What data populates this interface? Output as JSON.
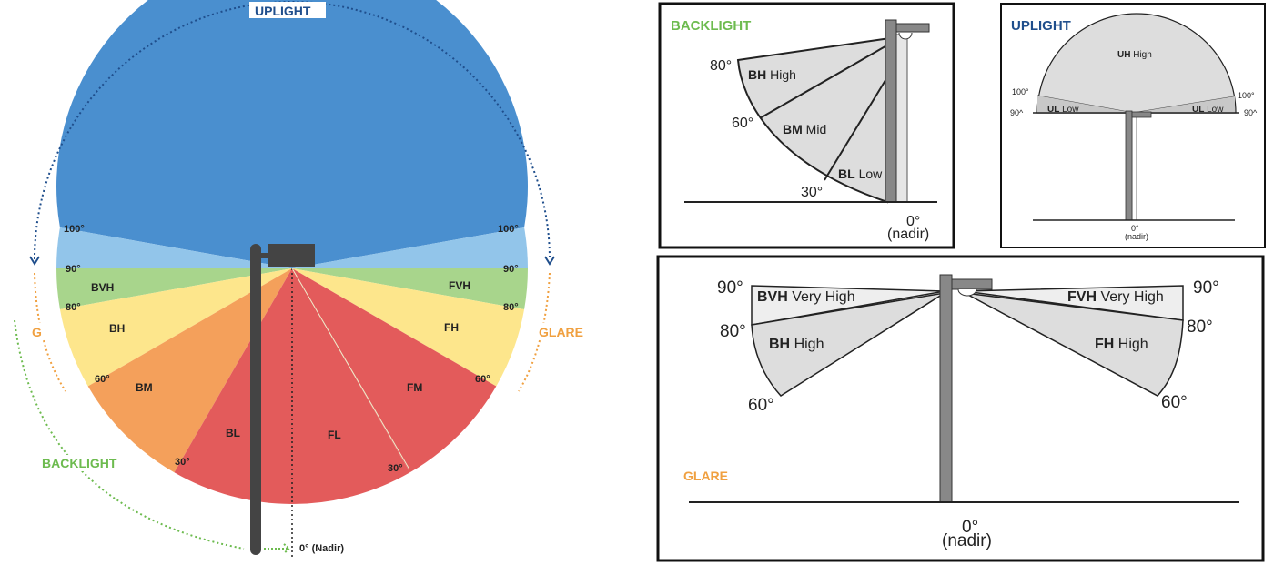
{
  "left_diagram": {
    "titles": {
      "uplight": "UPLIGHT",
      "glare_left": "G",
      "glare_right": "GLARE",
      "backlight": "BACKLIGHT"
    },
    "nadir_label": "0° (Nadir)",
    "sectors": [
      {
        "label": "",
        "from": -100,
        "to": 100,
        "color": "#4a8fcf",
        "upper": true
      },
      {
        "label": "",
        "from": 90,
        "to": 100,
        "color": "#92c5ea"
      },
      {
        "label": "",
        "from": -100,
        "to": -90,
        "color": "#92c5ea"
      },
      {
        "label": "FVH",
        "from": 80,
        "to": 90,
        "color": "#a8d58c"
      },
      {
        "label": "BVH",
        "from": -90,
        "to": -80,
        "color": "#a8d58c"
      },
      {
        "label": "FH",
        "from": 60,
        "to": 80,
        "color": "#fde68c"
      },
      {
        "label": "BH",
        "from": -80,
        "to": -60,
        "color": "#fde68c"
      },
      {
        "label": "FM",
        "from": 30,
        "to": 60,
        "color": "#e35b5b"
      },
      {
        "label": "BM",
        "from": -60,
        "to": -30,
        "color": "#f4a05b"
      },
      {
        "label": "FL",
        "from": 0,
        "to": 30,
        "color": "#e35b5b"
      },
      {
        "label": "BL",
        "from": -30,
        "to": 0,
        "color": "#e35b5b"
      }
    ],
    "degree_labels": {
      "d100": "100°",
      "d90": "90°",
      "d80": "80°",
      "d60": "60°",
      "d30": "30°"
    },
    "colors": {
      "uplight": "#1f4e8c",
      "glare": "#f0a040",
      "backlight": "#6dbb4f"
    }
  },
  "backlight_panel": {
    "title": "BACKLIGHT",
    "zones": [
      {
        "code": "BH",
        "name": "High"
      },
      {
        "code": "BM",
        "name": "Mid"
      },
      {
        "code": "BL",
        "name": "Low"
      }
    ],
    "angles": [
      "80°",
      "60°",
      "30°"
    ],
    "nadir": [
      "0°",
      "(nadir)"
    ]
  },
  "uplight_panel": {
    "title": "UPLIGHT",
    "zones": [
      {
        "code": "UH",
        "name": "High"
      },
      {
        "code": "UL",
        "name": "Low"
      }
    ],
    "angles": [
      "100°",
      "90^"
    ],
    "nadir": [
      "0°",
      "(nadir)"
    ]
  },
  "glare_panel": {
    "title": "GLARE",
    "zones": [
      {
        "code": "BVH",
        "name": "Very High"
      },
      {
        "code": "BH",
        "name": "High"
      },
      {
        "code": "FVH",
        "name": "Very High"
      },
      {
        "code": "FH",
        "name": "High"
      }
    ],
    "angles": [
      "90°",
      "80°",
      "60°"
    ],
    "nadir": [
      "0°",
      "(nadir)"
    ]
  }
}
